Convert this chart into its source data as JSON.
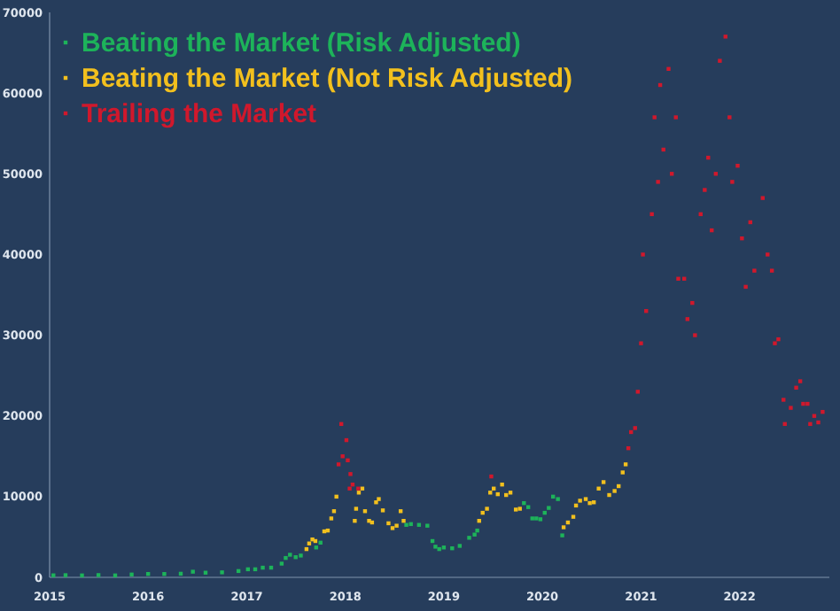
{
  "chart_data": {
    "type": "scatter",
    "marker": "square",
    "legend": "top left",
    "grid": false,
    "xlim": [
      "2015-01-01",
      "2022-11-30"
    ],
    "xticks": [
      "2015",
      "2016",
      "2017",
      "2018",
      "2019",
      "2020",
      "2021",
      "2022"
    ],
    "ylim": [
      0,
      70000
    ],
    "yticks": [
      0,
      10000,
      20000,
      30000,
      40000,
      50000,
      60000,
      70000
    ],
    "series": [
      {
        "name": "Beating the Market (Risk Adjusted)",
        "color": "#1db35a",
        "x": [
          "2015-01-15",
          "2015-03-01",
          "2015-05-01",
          "2015-07-01",
          "2015-09-01",
          "2015-11-01",
          "2016-01-01",
          "2016-03-01",
          "2016-05-01",
          "2016-06-15",
          "2016-08-01",
          "2016-10-01",
          "2016-12-01",
          "2017-01-05",
          "2017-02-01",
          "2017-03-01",
          "2017-04-01",
          "2017-05-10",
          "2017-05-25",
          "2017-06-10",
          "2017-07-01",
          "2017-07-20",
          "2017-09-15",
          "2017-10-01",
          "2018-08-15",
          "2018-09-01",
          "2018-10-01",
          "2018-11-01",
          "2018-11-20",
          "2018-12-01",
          "2018-12-15",
          "2019-01-01",
          "2019-02-01",
          "2019-03-01",
          "2019-04-05",
          "2019-04-25",
          "2019-05-05",
          "2019-10-25",
          "2019-11-10",
          "2019-11-25",
          "2019-12-10",
          "2019-12-25",
          "2020-01-10",
          "2020-01-25",
          "2020-02-10",
          "2020-02-28",
          "2020-03-15"
        ],
        "values": [
          250,
          270,
          240,
          280,
          240,
          350,
          420,
          415,
          450,
          700,
          580,
          620,
          780,
          1000,
          1000,
          1200,
          1200,
          1700,
          2400,
          2800,
          2500,
          2700,
          3700,
          4300,
          6500,
          6600,
          6500,
          6400,
          4500,
          3800,
          3500,
          3700,
          3600,
          3900,
          4900,
          5300,
          5800,
          9200,
          8700,
          7300,
          7300,
          7200,
          8000,
          8600,
          10000,
          9700,
          5200
        ]
      },
      {
        "name": "Beating the Market (Not Risk Adjusted)",
        "color": "#f2c01e",
        "x": [
          "2017-08-10",
          "2017-08-20",
          "2017-09-01",
          "2017-09-12",
          "2017-10-15",
          "2017-10-28",
          "2017-11-10",
          "2017-11-20",
          "2017-11-29",
          "2018-02-05",
          "2018-02-10",
          "2018-02-20",
          "2018-03-05",
          "2018-03-15",
          "2018-03-30",
          "2018-04-10",
          "2018-04-25",
          "2018-05-05",
          "2018-05-20",
          "2018-06-10",
          "2018-06-25",
          "2018-07-10",
          "2018-07-25",
          "2018-08-05",
          "2019-05-12",
          "2019-05-25",
          "2019-06-10",
          "2019-06-22",
          "2019-07-05",
          "2019-07-20",
          "2019-08-05",
          "2019-08-20",
          "2019-09-05",
          "2019-09-25",
          "2019-10-10",
          "2020-03-20",
          "2020-04-05",
          "2020-04-25",
          "2020-05-05",
          "2020-05-20",
          "2020-06-10",
          "2020-06-25",
          "2020-07-10",
          "2020-07-28",
          "2020-08-15",
          "2020-09-05",
          "2020-09-25",
          "2020-10-10",
          "2020-10-25",
          "2020-11-05"
        ],
        "values": [
          3500,
          4200,
          4700,
          4500,
          5700,
          5800,
          7300,
          8200,
          10000,
          7000,
          8500,
          10500,
          11000,
          8200,
          7000,
          6800,
          9300,
          9700,
          8300,
          6700,
          6100,
          6400,
          8200,
          7000,
          7000,
          8000,
          8500,
          10500,
          11000,
          10300,
          11500,
          10200,
          10500,
          8400,
          8500,
          6200,
          6800,
          7500,
          8900,
          9500,
          9700,
          9200,
          9300,
          11000,
          11800,
          10200,
          10700,
          11300,
          13000,
          14000
        ]
      },
      {
        "name": "Trailing the Market",
        "color": "#d0182c",
        "x": [
          "2017-12-07",
          "2017-12-17",
          "2017-12-22",
          "2018-01-05",
          "2018-01-10",
          "2018-01-17",
          "2018-01-20",
          "2018-01-28",
          "2018-02-18",
          "2019-06-26",
          "2020-11-15",
          "2020-11-25",
          "2020-12-10",
          "2020-12-20",
          "2021-01-01",
          "2021-01-08",
          "2021-01-20",
          "2021-02-10",
          "2021-02-20",
          "2021-03-05",
          "2021-03-13",
          "2021-03-25",
          "2021-04-13",
          "2021-04-25",
          "2021-05-10",
          "2021-05-19",
          "2021-06-10",
          "2021-06-22",
          "2021-07-10",
          "2021-07-20",
          "2021-08-10",
          "2021-08-25",
          "2021-09-07",
          "2021-09-20",
          "2021-10-05",
          "2021-10-20",
          "2021-11-10",
          "2021-11-25",
          "2021-12-05",
          "2021-12-25",
          "2022-01-10",
          "2022-01-24",
          "2022-02-10",
          "2022-02-25",
          "2022-03-28",
          "2022-04-15",
          "2022-05-01",
          "2022-05-12",
          "2022-05-25",
          "2022-06-13",
          "2022-06-18",
          "2022-07-10",
          "2022-07-30",
          "2022-08-14",
          "2022-08-25",
          "2022-09-10",
          "2022-09-20",
          "2022-10-05",
          "2022-10-20",
          "2022-11-05"
        ],
        "values": [
          14000,
          19000,
          15000,
          17000,
          14500,
          11000,
          12800,
          11500,
          11000,
          12500,
          16000,
          18000,
          18500,
          23000,
          29000,
          40000,
          33000,
          45000,
          57000,
          49000,
          61000,
          53000,
          63000,
          50000,
          57000,
          37000,
          37000,
          32000,
          34000,
          30000,
          45000,
          48000,
          52000,
          43000,
          50000,
          64000,
          67000,
          57000,
          49000,
          51000,
          42000,
          36000,
          44000,
          38000,
          47000,
          40000,
          38000,
          29000,
          29500,
          22000,
          19000,
          21000,
          23500,
          24300,
          21500,
          21500,
          19000,
          20000,
          19200,
          20500
        ]
      }
    ]
  }
}
